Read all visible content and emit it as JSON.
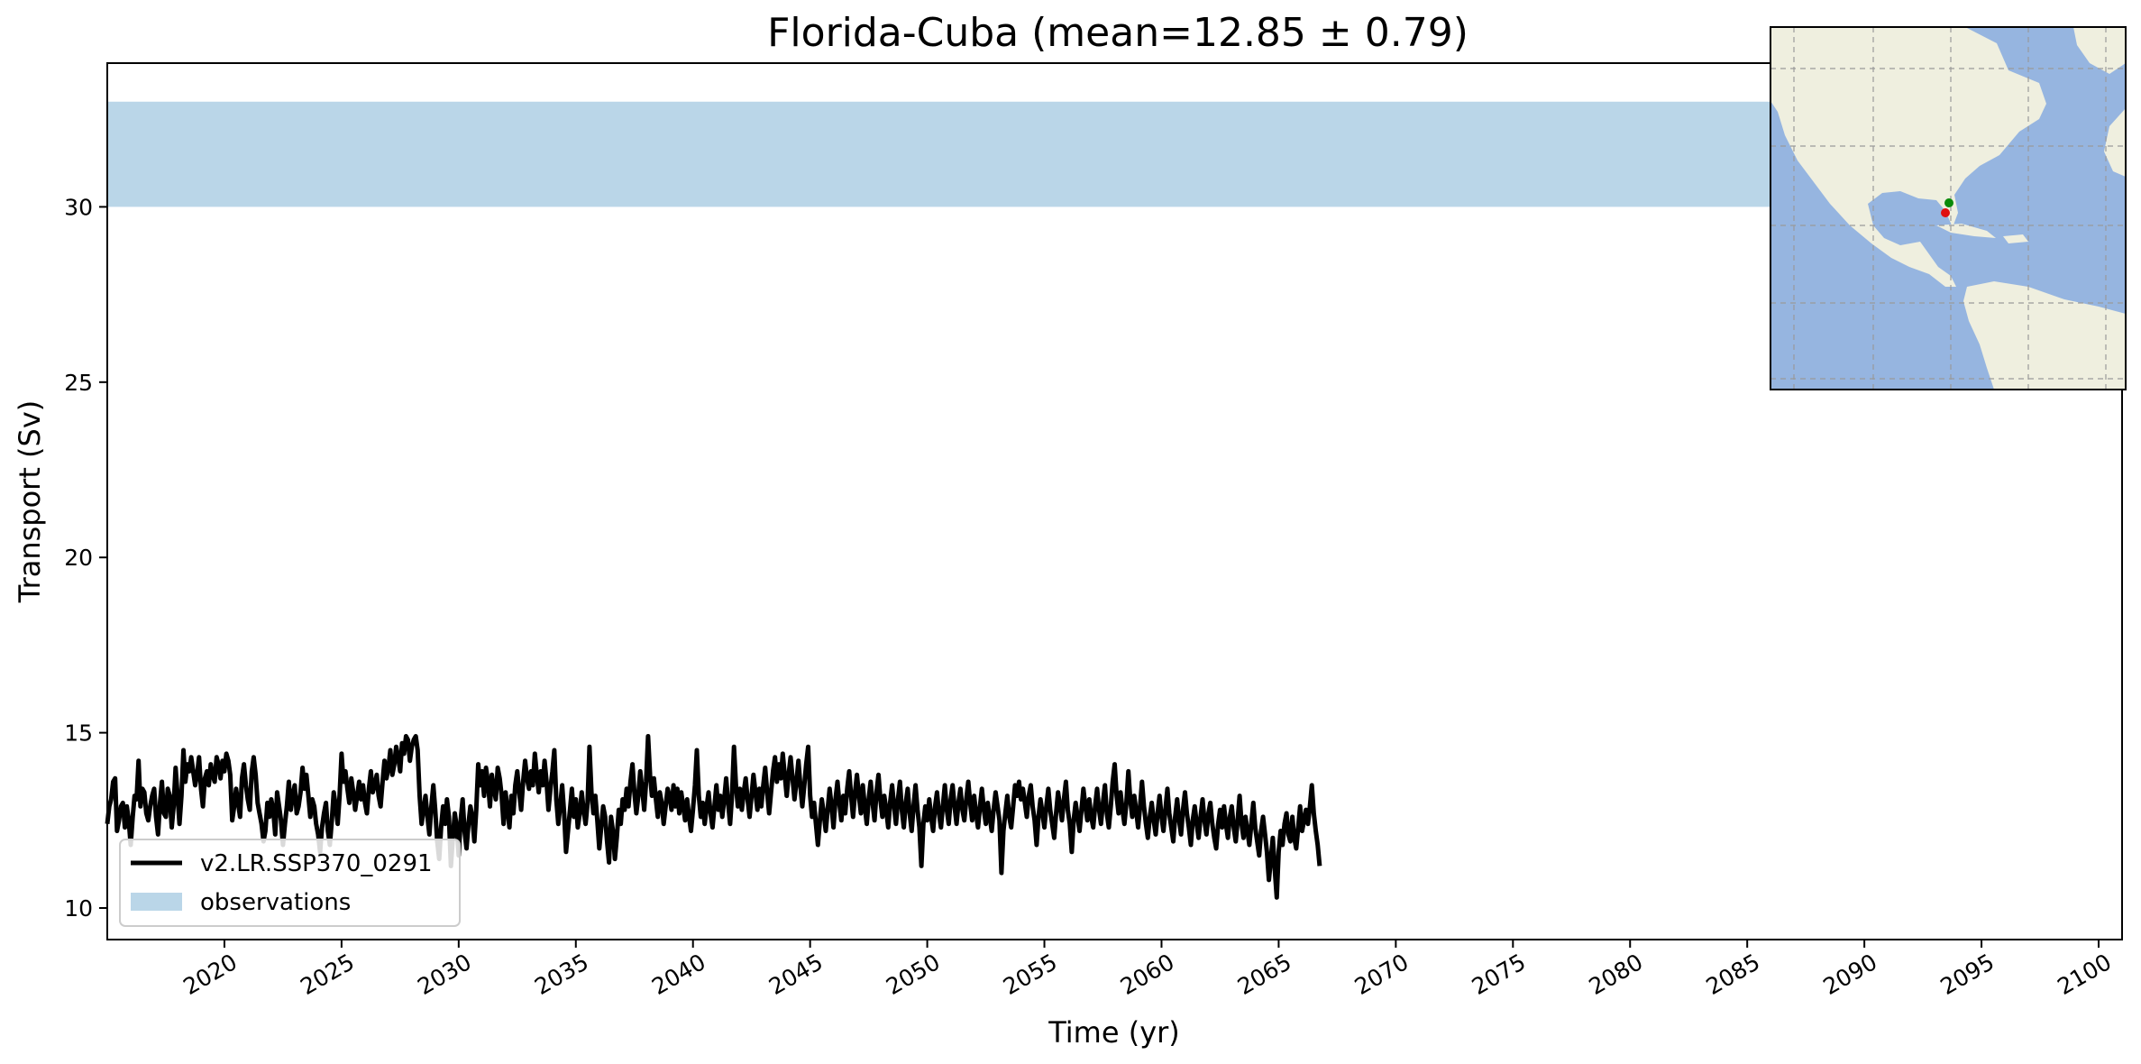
{
  "chart_data": {
    "type": "line",
    "title": "Florida-Cuba (mean=12.85 ± 0.79)",
    "xlabel": "Time (yr)",
    "ylabel": "Transport (Sv)",
    "xlim": [
      2015,
      2101
    ],
    "ylim": [
      9.1,
      34.1
    ],
    "x_ticks": [
      2020,
      2025,
      2030,
      2035,
      2040,
      2045,
      2050,
      2055,
      2060,
      2065,
      2070,
      2075,
      2080,
      2085,
      2090,
      2095,
      2100
    ],
    "y_ticks": [
      10,
      15,
      20,
      25,
      30
    ],
    "x_tick_labels": [
      "2020",
      "2025",
      "2030",
      "2035",
      "2040",
      "2045",
      "2050",
      "2055",
      "2060",
      "2065",
      "2070",
      "2075",
      "2080",
      "2085",
      "2090",
      "2095",
      "2100"
    ],
    "y_tick_labels": [
      "10",
      "15",
      "20",
      "25",
      "30"
    ],
    "grid": false,
    "legend_position": "lower-left",
    "series": [
      {
        "name": "v2.LR.SSP370_0291",
        "color": "#000000",
        "monthly_start": 2015.0,
        "values": [
          12.4,
          12.9,
          13.1,
          13.6,
          13.7,
          12.2,
          12.5,
          12.9,
          13.0,
          12.3,
          12.9,
          12.5,
          11.8,
          12.6,
          13.2,
          13.1,
          14.2,
          12.9,
          13.4,
          13.3,
          12.7,
          12.5,
          12.9,
          13.2,
          13.4,
          12.6,
          12.1,
          13.0,
          13.6,
          12.7,
          12.6,
          13.4,
          13.2,
          12.3,
          12.9,
          14.0,
          13.2,
          12.4,
          13.2,
          14.5,
          13.6,
          14.1,
          13.9,
          14.3,
          13.9,
          13.5,
          13.8,
          14.3,
          13.4,
          12.9,
          13.7,
          13.9,
          13.5,
          14.1,
          13.8,
          13.6,
          14.3,
          14.1,
          13.7,
          14.2,
          13.9,
          14.4,
          14.2,
          13.8,
          12.5,
          12.9,
          13.4,
          13.0,
          12.6,
          13.7,
          14.1,
          13.5,
          13.1,
          12.8,
          13.9,
          14.3,
          13.8,
          13.0,
          12.7,
          12.4,
          11.9,
          12.2,
          13.0,
          12.6,
          13.1,
          12.8,
          12.1,
          13.3,
          12.9,
          12.5,
          11.8,
          12.4,
          12.9,
          13.6,
          12.8,
          13.2,
          13.5,
          12.7,
          12.9,
          13.3,
          14.0,
          13.4,
          13.8,
          13.2,
          12.6,
          13.1,
          12.9,
          12.4,
          12.1,
          11.6,
          12.3,
          12.7,
          13.0,
          12.2,
          11.8,
          12.5,
          13.3,
          12.9,
          12.4,
          13.2,
          14.4,
          13.6,
          13.9,
          13.4,
          13.0,
          13.7,
          13.3,
          12.8,
          13.2,
          13.6,
          13.1,
          13.5,
          13.0,
          12.7,
          13.4,
          13.9,
          13.3,
          13.5,
          13.8,
          13.2,
          12.9,
          13.6,
          14.2,
          13.7,
          14.0,
          14.5,
          13.8,
          14.1,
          14.6,
          14.3,
          13.9,
          14.7,
          14.4,
          14.9,
          14.8,
          14.2,
          14.6,
          14.8,
          14.9,
          14.5,
          13.2,
          12.4,
          12.8,
          13.2,
          12.6,
          12.1,
          12.9,
          13.5,
          12.8,
          11.9,
          11.4,
          12.3,
          12.9,
          12.4,
          13.1,
          12.6,
          11.2,
          12.0,
          12.7,
          12.3,
          11.5,
          12.5,
          13.1,
          12.2,
          11.7,
          12.4,
          12.9,
          12.6,
          11.9,
          12.8,
          14.1,
          13.5,
          13.9,
          13.2,
          14.0,
          13.6,
          12.9,
          13.8,
          13.4,
          13.1,
          14.0,
          13.7,
          13.2,
          12.4,
          13.3,
          12.8,
          12.3,
          13.2,
          12.7,
          13.5,
          13.9,
          13.3,
          12.8,
          13.6,
          14.2,
          13.7,
          13.4,
          13.9,
          13.5,
          14.4,
          13.8,
          13.3,
          13.9,
          13.5,
          14.2,
          13.6,
          12.8,
          13.4,
          13.9,
          14.5,
          13.1,
          12.4,
          12.9,
          13.5,
          12.7,
          11.6,
          12.2,
          12.8,
          13.4,
          12.6,
          13.1,
          12.3,
          12.7,
          13.3,
          12.8,
          12.4,
          13.0,
          14.6,
          13.3,
          12.7,
          13.2,
          12.5,
          11.7,
          12.3,
          12.9,
          12.6,
          11.9,
          11.3,
          12.6,
          12.2,
          11.4,
          12.0,
          12.8,
          12.4,
          13.1,
          12.8,
          13.4,
          12.9,
          13.6,
          14.1,
          13.3,
          12.7,
          13.2,
          13.9,
          13.4,
          12.8,
          13.6,
          14.9,
          13.8,
          13.2,
          13.7,
          13.1,
          12.6,
          13.3,
          13.0,
          12.4,
          12.9,
          13.4,
          13.2,
          12.8,
          13.5,
          12.9,
          13.4,
          12.7,
          13.3,
          12.9,
          12.5,
          13.1,
          12.6,
          12.2,
          12.8,
          13.5,
          14.5,
          13.2,
          12.6,
          13.0,
          12.4,
          12.9,
          13.3,
          12.7,
          12.3,
          12.9,
          13.5,
          12.8,
          13.2,
          12.6,
          13.1,
          13.7,
          13.0,
          12.4,
          13.2,
          14.6,
          13.5,
          12.9,
          13.4,
          12.8,
          13.3,
          13.7,
          13.1,
          12.6,
          13.2,
          13.8,
          13.3,
          12.8,
          13.4,
          12.9,
          13.5,
          14.0,
          13.3,
          12.7,
          13.3,
          13.9,
          14.3,
          13.6,
          14.1,
          13.7,
          14.4,
          13.8,
          13.2,
          13.8,
          14.3,
          13.7,
          13.1,
          13.6,
          14.2,
          13.5,
          12.9,
          13.5,
          14.1,
          14.6,
          13.2,
          12.6,
          13.0,
          12.4,
          11.8,
          12.5,
          13.1,
          12.7,
          12.2,
          12.8,
          13.4,
          12.9,
          12.3,
          13.1,
          13.6,
          13.0,
          12.5,
          13.2,
          12.7,
          13.4,
          13.9,
          13.2,
          12.6,
          13.3,
          13.8,
          13.2,
          12.7,
          13.5,
          12.9,
          12.4,
          13.1,
          13.6,
          13.0,
          12.5,
          13.3,
          13.8,
          13.1,
          12.6,
          13.2,
          12.8,
          12.3,
          13.0,
          13.5,
          12.9,
          12.4,
          13.1,
          13.6,
          12.8,
          12.3,
          13.0,
          13.4,
          12.7,
          12.2,
          12.9,
          13.5,
          12.8,
          12.3,
          11.2,
          12.4,
          12.9,
          12.5,
          13.1,
          12.6,
          12.2,
          12.9,
          13.3,
          12.7,
          12.3,
          12.9,
          13.5,
          12.8,
          12.4,
          13.1,
          13.5,
          12.9,
          12.4,
          13.0,
          13.4,
          12.8,
          12.5,
          13.1,
          13.6,
          13.0,
          12.5,
          13.2,
          12.7,
          12.3,
          12.9,
          13.4,
          12.8,
          12.4,
          13.0,
          12.6,
          12.2,
          12.8,
          13.3,
          12.9,
          12.5,
          11.0,
          12.2,
          12.7,
          13.2,
          12.6,
          12.3,
          12.9,
          13.5,
          13.2,
          13.6,
          13.1,
          13.4,
          13.0,
          12.6,
          13.2,
          13.5,
          12.9,
          12.5,
          11.8,
          12.6,
          13.1,
          12.7,
          12.3,
          12.9,
          13.4,
          12.8,
          12.4,
          12.0,
          12.7,
          13.3,
          12.9,
          12.5,
          13.1,
          13.6,
          12.8,
          12.4,
          11.6,
          12.5,
          13.0,
          12.6,
          12.2,
          12.8,
          13.4,
          12.9,
          12.5,
          13.1,
          12.6,
          12.3,
          12.9,
          13.4,
          12.8,
          12.4,
          13.0,
          13.5,
          12.7,
          12.3,
          12.9,
          13.6,
          14.1,
          13.2,
          12.7,
          13.3,
          12.8,
          12.4,
          13.0,
          13.9,
          13.1,
          12.6,
          13.2,
          12.8,
          12.3,
          12.9,
          13.6,
          12.9,
          12.4,
          12.0,
          12.6,
          13.0,
          12.5,
          12.1,
          12.7,
          13.2,
          12.6,
          12.2,
          12.8,
          13.4,
          12.7,
          12.3,
          11.9,
          12.6,
          13.1,
          12.5,
          12.1,
          12.8,
          13.3,
          12.7,
          12.3,
          11.8,
          12.5,
          12.9,
          12.4,
          12.0,
          12.6,
          13.1,
          12.5,
          12.1,
          12.7,
          13.0,
          12.4,
          12.0,
          11.7,
          12.4,
          12.8,
          12.3,
          12.9,
          12.4,
          12.0,
          12.6,
          12.9,
          12.3,
          11.9,
          12.5,
          13.2,
          12.4,
          12.0,
          12.6,
          12.2,
          11.8,
          12.4,
          13.0,
          12.3,
          11.9,
          11.5,
          12.2,
          12.6,
          12.1,
          11.6,
          10.8,
          11.4,
          12.0,
          11.1,
          10.3,
          11.6,
          12.2,
          11.8,
          12.4,
          12.7,
          12.1,
          11.9,
          12.6,
          12.0,
          11.7,
          12.3,
          12.9,
          12.2,
          12.5,
          12.8,
          12.4,
          12.9,
          13.5,
          12.7,
          12.2,
          11.8,
          11.2
        ]
      }
    ],
    "observations": {
      "name": "observations",
      "range": [
        30.0,
        33.0
      ],
      "color": "#bad6e8"
    },
    "inset_map": {
      "ocean_color": "#96b5e0",
      "land_color": "#efefdf",
      "section_start_color": "#0a8a0a",
      "section_end_color": "#e01010"
    }
  }
}
